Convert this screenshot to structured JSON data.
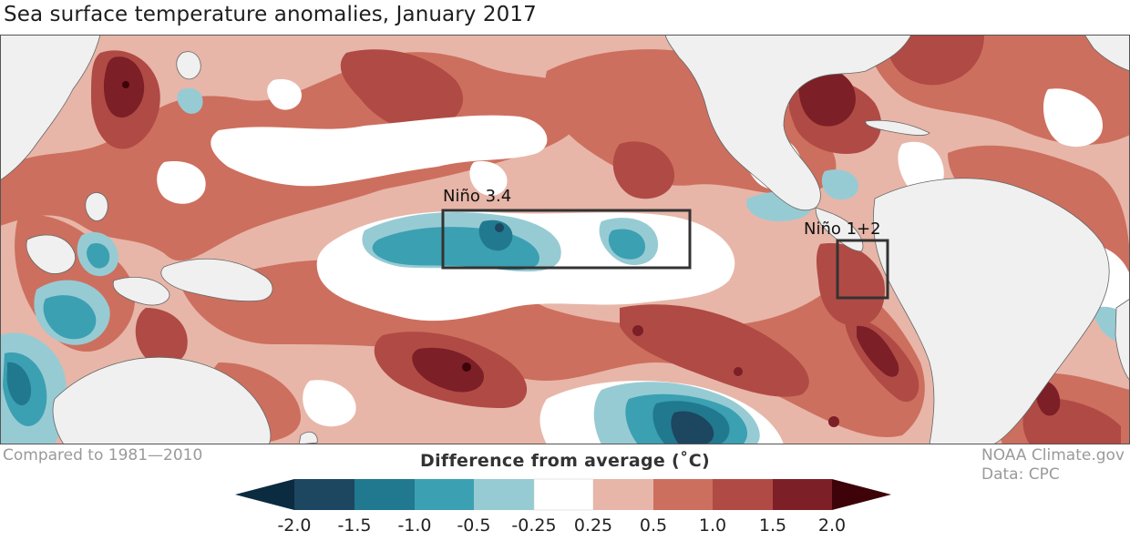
{
  "title": "Sea surface temperature anomalies, January 2017",
  "footer": {
    "comparison": "Compared to 1981—2010",
    "source_line1": "NOAA Climate.gov",
    "source_line2": "Data: CPC"
  },
  "legend": {
    "title": "Difference from average (˚C)",
    "ticks": [
      "-2.0",
      "-1.5",
      "-1.0",
      "-0.5",
      "-0.25",
      "0.25",
      "0.5",
      "1.0",
      "1.5",
      "2.0"
    ],
    "colors": {
      "below_-2": "#0b2b40",
      "-2_to_-1.5": "#1d4660",
      "-1.5_to_-1": "#21798f",
      "-1_to_-0.5": "#3ba0b2",
      "-0.5_to_-0.25": "#97cbd4",
      "neutral": "#ffffff",
      "0.25_to_0.5": "#e7b6a8",
      "0.5_to_1": "#cd6f5e",
      "1_to_1.5": "#b04a45",
      "1.5_to_2": "#7d1f27",
      "above_2": "#3d0309"
    }
  },
  "regions": {
    "nino34": "Niño 3.4",
    "nino12": "Niño 1+2"
  },
  "map_colors": {
    "land": "#f0f0f0",
    "coast": "#666666"
  }
}
